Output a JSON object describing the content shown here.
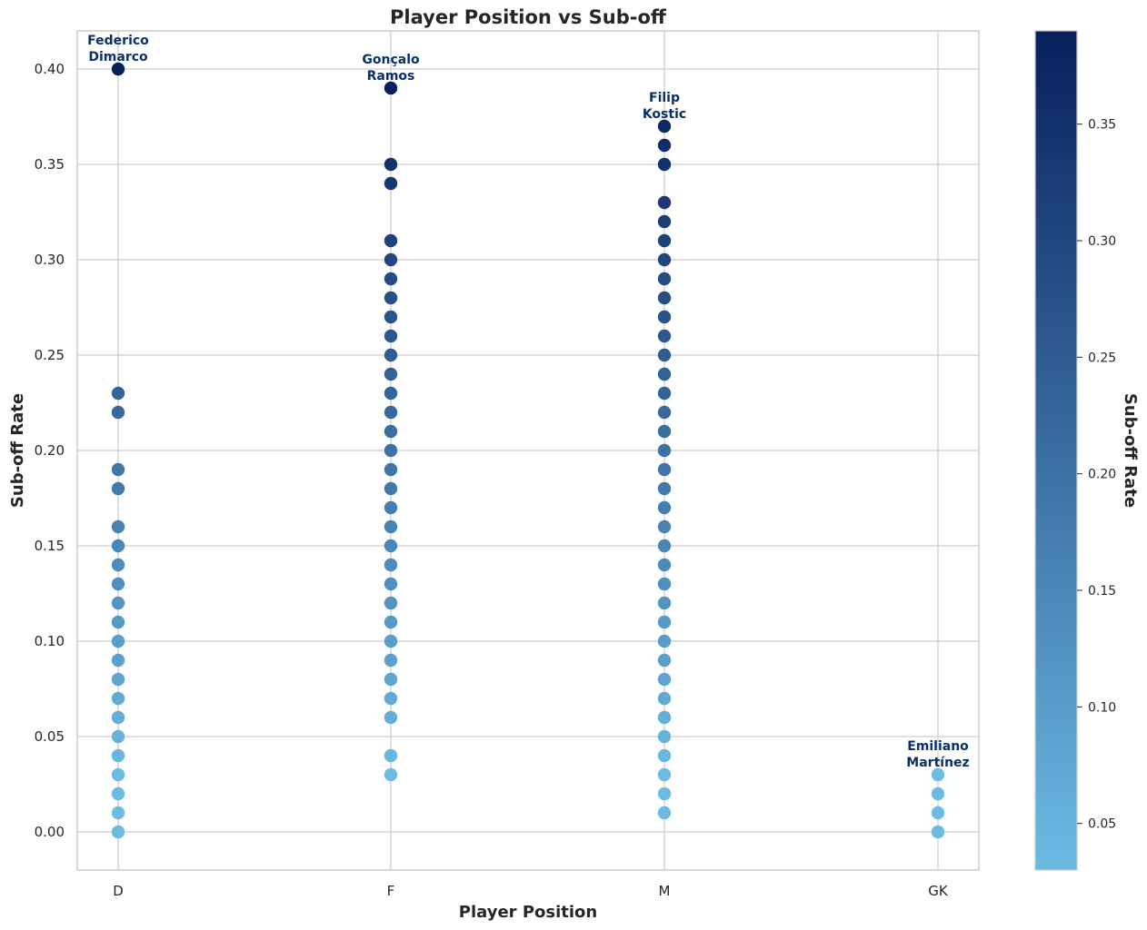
{
  "chart_data": {
    "type": "scatter",
    "title": "Player Position vs Sub-off",
    "xlabel": "Player Position",
    "ylabel": "Sub-off Rate",
    "categories": [
      "D",
      "F",
      "M",
      "GK"
    ],
    "ylim": [
      -0.02,
      0.42
    ],
    "yticks": [
      "0.00",
      "0.05",
      "0.10",
      "0.15",
      "0.20",
      "0.25",
      "0.30",
      "0.35",
      "0.40"
    ],
    "grid": true,
    "colorbar": {
      "label": "Sub-off Rate",
      "range": [
        0.03,
        0.39
      ],
      "ticks": [
        "0.05",
        "0.10",
        "0.15",
        "0.20",
        "0.25",
        "0.30",
        "0.35"
      ],
      "colors": [
        "#6cbbe3",
        "#08205c"
      ]
    },
    "series": [
      {
        "category": "D",
        "values": [
          0.0,
          0.01,
          0.02,
          0.03,
          0.04,
          0.05,
          0.06,
          0.07,
          0.08,
          0.09,
          0.1,
          0.11,
          0.12,
          0.13,
          0.14,
          0.15,
          0.16,
          0.18,
          0.19,
          0.22,
          0.23,
          0.4
        ]
      },
      {
        "category": "F",
        "values": [
          0.03,
          0.04,
          0.06,
          0.07,
          0.08,
          0.09,
          0.1,
          0.11,
          0.12,
          0.13,
          0.14,
          0.15,
          0.16,
          0.17,
          0.18,
          0.19,
          0.2,
          0.21,
          0.22,
          0.23,
          0.24,
          0.25,
          0.26,
          0.27,
          0.28,
          0.29,
          0.3,
          0.31,
          0.34,
          0.35,
          0.39
        ]
      },
      {
        "category": "M",
        "values": [
          0.01,
          0.02,
          0.03,
          0.04,
          0.05,
          0.06,
          0.07,
          0.08,
          0.09,
          0.1,
          0.11,
          0.12,
          0.13,
          0.14,
          0.15,
          0.16,
          0.17,
          0.18,
          0.19,
          0.2,
          0.21,
          0.22,
          0.23,
          0.24,
          0.25,
          0.26,
          0.27,
          0.28,
          0.29,
          0.3,
          0.31,
          0.32,
          0.33,
          0.35,
          0.36,
          0.37
        ]
      },
      {
        "category": "GK",
        "values": [
          0.0,
          0.01,
          0.02,
          0.03
        ]
      }
    ],
    "annotations": [
      {
        "category": "D",
        "value": 0.4,
        "lines": [
          "Federico",
          "Dimarco"
        ]
      },
      {
        "category": "F",
        "value": 0.39,
        "lines": [
          "Gonçalo",
          "Ramos"
        ]
      },
      {
        "category": "M",
        "value": 0.37,
        "lines": [
          "Filip",
          "Kostic"
        ]
      },
      {
        "category": "GK",
        "value": 0.03,
        "lines": [
          "Emiliano",
          "Martínez"
        ]
      }
    ]
  }
}
